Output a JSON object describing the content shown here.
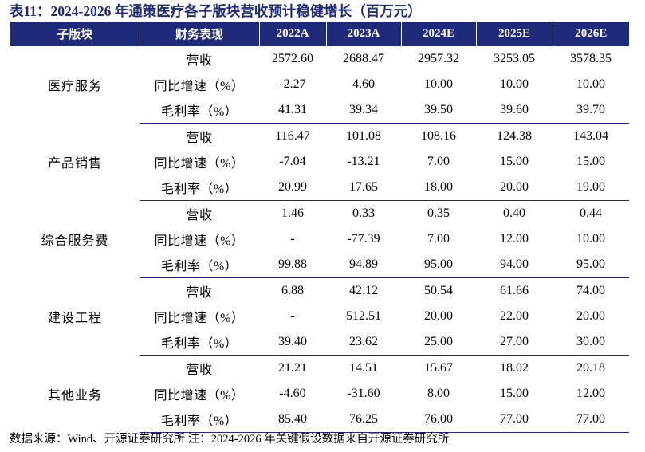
{
  "title": "表11：2024-2026 年通策医疗各子版块营收预计稳健增长（百万元）",
  "header": [
    "子版块",
    "财务表现",
    "2022A",
    "2023A",
    "2024E",
    "2025E",
    "2026E"
  ],
  "groups": [
    {
      "segment": "医疗服务",
      "rows": [
        {
          "metric": "营收",
          "values": [
            "2572.60",
            "2688.47",
            "2957.32",
            "3253.05",
            "3578.35"
          ]
        },
        {
          "metric": "同比增速（%）",
          "values": [
            "-2.27",
            "4.60",
            "10.00",
            "10.00",
            "10.00"
          ]
        },
        {
          "metric": "毛利率（%）",
          "values": [
            "41.31",
            "39.34",
            "39.50",
            "39.60",
            "39.70"
          ]
        }
      ]
    },
    {
      "segment": "产品销售",
      "rows": [
        {
          "metric": "营收",
          "values": [
            "116.47",
            "101.08",
            "108.16",
            "124.38",
            "143.04"
          ]
        },
        {
          "metric": "同比增速（%）",
          "values": [
            "-7.04",
            "-13.21",
            "7.00",
            "15.00",
            "15.00"
          ]
        },
        {
          "metric": "毛利率（%）",
          "values": [
            "20.99",
            "17.65",
            "18.00",
            "20.00",
            "19.00"
          ]
        }
      ]
    },
    {
      "segment": "综合服务费",
      "rows": [
        {
          "metric": "营收",
          "values": [
            "1.46",
            "0.33",
            "0.35",
            "0.40",
            "0.44"
          ]
        },
        {
          "metric": "同比增速（%）",
          "values": [
            "-",
            "-77.39",
            "7.00",
            "12.00",
            "10.00"
          ]
        },
        {
          "metric": "毛利率（%）",
          "values": [
            "99.88",
            "94.89",
            "95.00",
            "94.00",
            "95.00"
          ]
        }
      ]
    },
    {
      "segment": "建设工程",
      "rows": [
        {
          "metric": "营收",
          "values": [
            "6.88",
            "42.12",
            "50.54",
            "61.66",
            "74.00"
          ]
        },
        {
          "metric": "同比增速（%）",
          "values": [
            "-",
            "512.51",
            "20.00",
            "22.00",
            "20.00"
          ]
        },
        {
          "metric": "毛利率（%）",
          "values": [
            "39.40",
            "23.62",
            "25.00",
            "27.00",
            "30.00"
          ]
        }
      ]
    },
    {
      "segment": "其他业务",
      "rows": [
        {
          "metric": "营收",
          "values": [
            "21.21",
            "14.51",
            "15.67",
            "18.02",
            "20.18"
          ]
        },
        {
          "metric": "同比增速（%）",
          "values": [
            "-4.60",
            "-31.60",
            "8.00",
            "15.00",
            "12.00"
          ]
        },
        {
          "metric": "毛利率（%）",
          "values": [
            "85.40",
            "76.25",
            "76.00",
            "77.00",
            "77.00"
          ]
        }
      ]
    }
  ],
  "source": "数据来源：Wind、开源证券研究所 注：2024-2026 年关键假设数据来自开源证券研究所",
  "colors": {
    "header_bg": "#1f2a7a",
    "header_text": "#ffffff",
    "title": "#1f2a7a",
    "divider": "#1f2a7a"
  }
}
